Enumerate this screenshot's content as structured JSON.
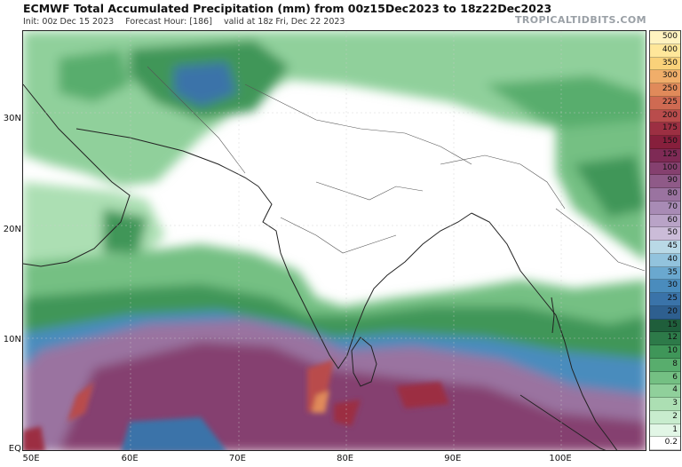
{
  "header": {
    "title": "ECMWF Total Accumulated Precipitation (mm) from 00z15Dec2023 to 18z22Dec2023",
    "init": "Init: 00z Dec 15 2023",
    "forecast_hour": "Forecast Hour: [186]",
    "valid": "valid at 18z Fri, Dec 22 2023",
    "brand": "TROPICALTIDBITS.COM"
  },
  "map": {
    "lon_range": [
      50,
      108
    ],
    "lat_range": [
      0,
      38
    ],
    "lat_labels": [
      "30N",
      "20N",
      "10N",
      "EQ"
    ],
    "lat_values": [
      30,
      20,
      10,
      0
    ],
    "lon_labels": [
      "50E",
      "60E",
      "70E",
      "80E",
      "90E",
      "100E"
    ],
    "lon_values": [
      50,
      60,
      70,
      80,
      90,
      100
    ]
  },
  "colorbar": {
    "levels": [
      "500",
      "400",
      "350",
      "300",
      "250",
      "225",
      "200",
      "175",
      "150",
      "125",
      "100",
      "90",
      "80",
      "70",
      "60",
      "50",
      "45",
      "40",
      "35",
      "30",
      "25",
      "20",
      "15",
      "12",
      "10",
      "8",
      "6",
      "4",
      "3",
      "2",
      "1",
      "0.2"
    ],
    "colors": [
      "#fff3c0",
      "#ffe79a",
      "#f9d27a",
      "#f0ae6a",
      "#e08a5a",
      "#cf6a52",
      "#b94c4c",
      "#9c2f42",
      "#871f3c",
      "#7e2a55",
      "#85406f",
      "#8f5a88",
      "#9a73a0",
      "#a88bb5",
      "#b9a3c7",
      "#cbbcd8",
      "#b9d9e6",
      "#92c3dd",
      "#6aa8cf",
      "#4a8cbd",
      "#3a73a9",
      "#2e5f8f",
      "#1f5e3b",
      "#2d7a49",
      "#3f9659",
      "#58ad6d",
      "#74c083",
      "#90d09b",
      "#acdfb3",
      "#c8ecce",
      "#e2f6e6",
      "#ffffff"
    ]
  }
}
